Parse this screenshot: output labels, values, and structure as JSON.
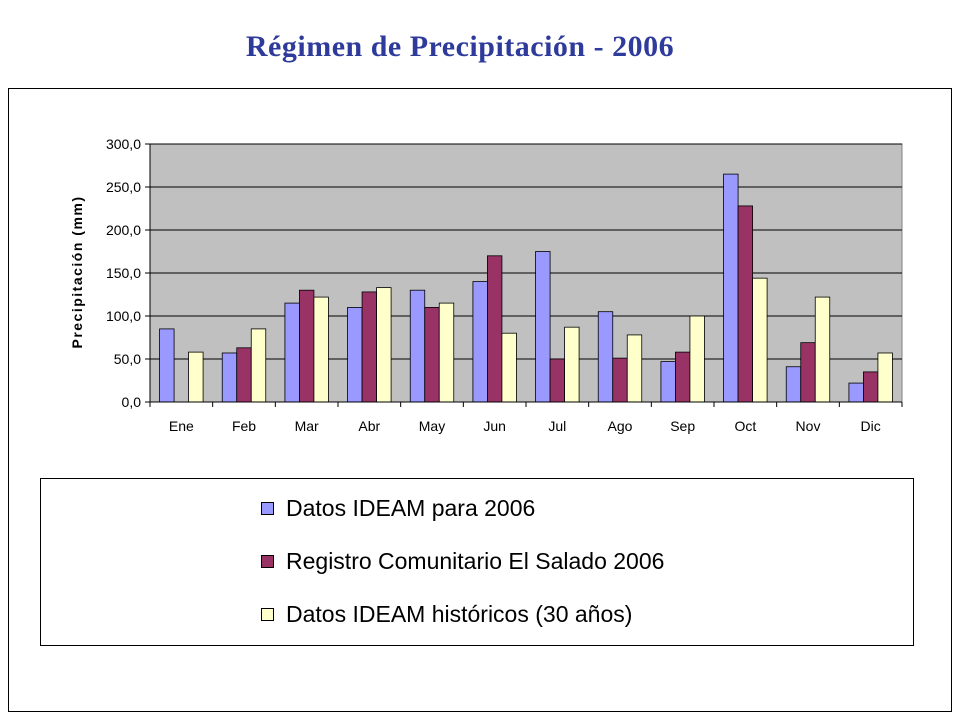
{
  "title": "Régimen de Precipitación - 2006",
  "chart_data": {
    "type": "bar",
    "title": "",
    "ylabel": "Precipitación (mm)",
    "xlabel": "",
    "ylim": [
      0,
      300
    ],
    "yticks": [
      "0,0",
      "50,0",
      "100,0",
      "150,0",
      "200,0",
      "250,0",
      "300,0"
    ],
    "grid": true,
    "legend_position": "bottom",
    "categories": [
      "Ene",
      "Feb",
      "Mar",
      "Abr",
      "May",
      "Jun",
      "Jul",
      "Ago",
      "Sep",
      "Oct",
      "Nov",
      "Dic"
    ],
    "series": [
      {
        "name": "Datos IDEAM para 2006",
        "color": "#9999FF",
        "values": [
          85,
          57,
          115,
          110,
          130,
          140,
          175,
          105,
          47,
          265,
          41,
          22
        ]
      },
      {
        "name": "Registro Comunitario El Salado 2006",
        "color": "#993366",
        "values": [
          0,
          63,
          130,
          128,
          110,
          170,
          50,
          51,
          58,
          228,
          69,
          35
        ]
      },
      {
        "name": "Datos IDEAM históricos (30 años)",
        "color": "#FFFFCC",
        "values": [
          58,
          85,
          122,
          133,
          115,
          80,
          87,
          78,
          100,
          144,
          122,
          57
        ]
      }
    ],
    "plot_background": "#C0C0C0"
  }
}
